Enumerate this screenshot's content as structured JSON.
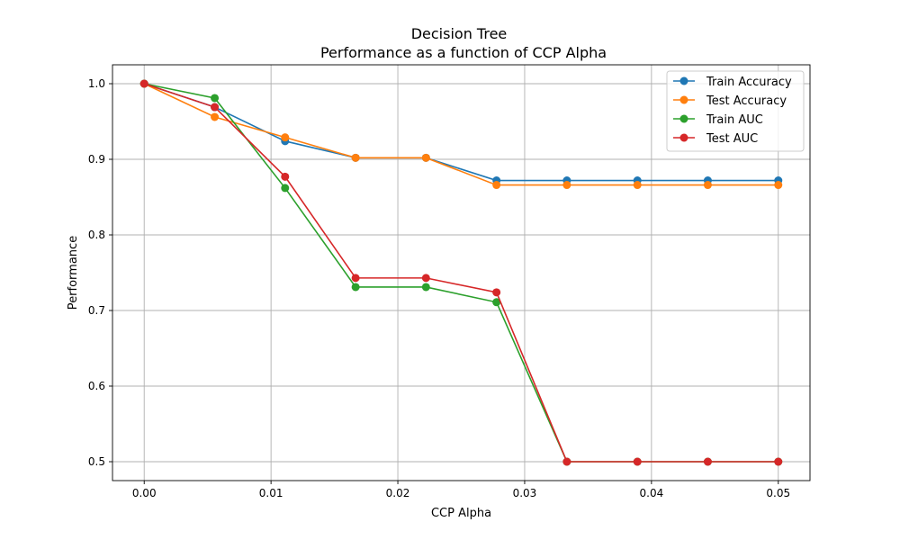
{
  "chart_data": {
    "type": "line",
    "title": "Decision Tree",
    "subtitle": "Performance as a function of CCP Alpha",
    "xlabel": "CCP Alpha",
    "ylabel": "Performance",
    "x": [
      0.0,
      0.00556,
      0.01111,
      0.01667,
      0.02222,
      0.02778,
      0.03333,
      0.03889,
      0.04444,
      0.05
    ],
    "xlim": [
      -0.0025,
      0.0525
    ],
    "ylim": [
      0.475,
      1.025
    ],
    "xticks": [
      0.0,
      0.01,
      0.02,
      0.03,
      0.04,
      0.05
    ],
    "xtick_labels": [
      "0.00",
      "0.01",
      "0.02",
      "0.03",
      "0.04",
      "0.05"
    ],
    "yticks": [
      0.5,
      0.6,
      0.7,
      0.8,
      0.9,
      1.0
    ],
    "ytick_labels": [
      "0.5",
      "0.6",
      "0.7",
      "0.8",
      "0.9",
      "1.0"
    ],
    "grid": true,
    "legend_position": "top-right",
    "series": [
      {
        "name": "Train Accuracy",
        "color": "#1f77b4",
        "values": [
          1.0,
          0.969,
          0.924,
          0.902,
          0.902,
          0.872,
          0.872,
          0.872,
          0.872,
          0.872
        ]
      },
      {
        "name": "Test Accuracy",
        "color": "#ff7f0e",
        "values": [
          1.0,
          0.956,
          0.929,
          0.902,
          0.902,
          0.866,
          0.866,
          0.866,
          0.866,
          0.866
        ]
      },
      {
        "name": "Train AUC",
        "color": "#2ca02c",
        "values": [
          1.0,
          0.981,
          0.862,
          0.731,
          0.731,
          0.711,
          0.5,
          0.5,
          0.5,
          0.5
        ]
      },
      {
        "name": "Test AUC",
        "color": "#d62728",
        "values": [
          1.0,
          0.969,
          0.877,
          0.743,
          0.743,
          0.724,
          0.5,
          0.5,
          0.5,
          0.5
        ]
      }
    ]
  }
}
